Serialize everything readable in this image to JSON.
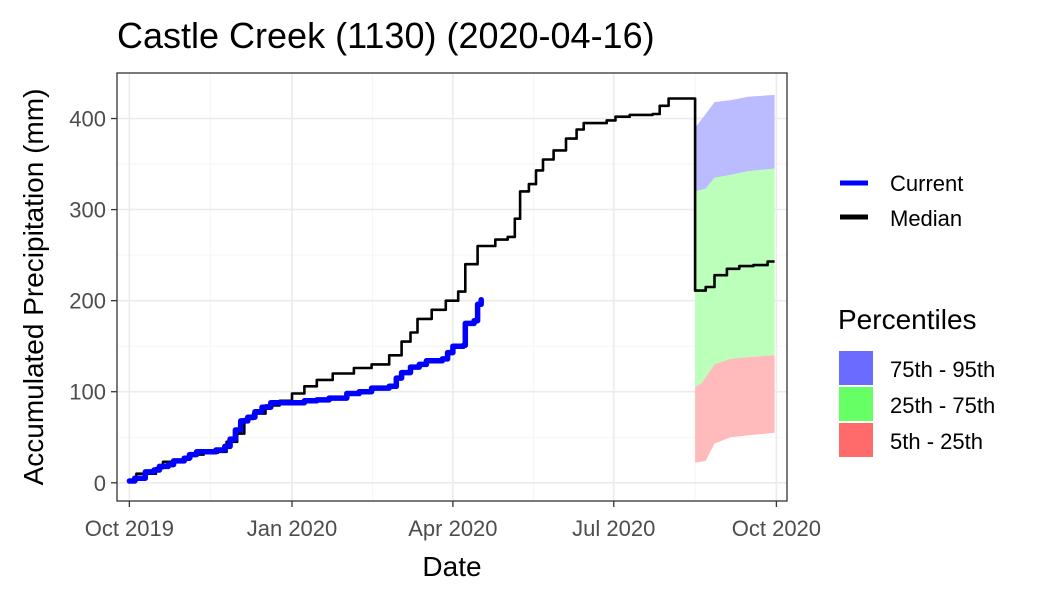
{
  "chart_data": {
    "type": "line",
    "title": "Castle Creek (1130) (2020-04-16)",
    "xlabel": "Date",
    "ylabel": "Accumulated Precipitation (mm)",
    "xlim": [
      "2019-09-24",
      "2020-10-07"
    ],
    "ylim": [
      -20,
      450
    ],
    "x_ticks": [
      "2019-10-01",
      "2020-01-01",
      "2020-04-01",
      "2020-07-01",
      "2020-10-01"
    ],
    "x_tick_labels": [
      "Oct 2019",
      "Jan 2020",
      "Apr 2020",
      "Jul 2020",
      "Oct 2020"
    ],
    "y_ticks": [
      0,
      100,
      200,
      300,
      400
    ],
    "y_tick_labels": [
      "0",
      "100",
      "200",
      "300",
      "400"
    ],
    "grid": true,
    "legend_placement": "right",
    "series": [
      {
        "name": "Current",
        "color": "#0000ff",
        "points": [
          [
            "2019-10-01",
            2
          ],
          [
            "2019-10-04",
            5
          ],
          [
            "2019-10-08",
            5
          ],
          [
            "2019-10-10",
            12
          ],
          [
            "2019-10-15",
            14
          ],
          [
            "2019-10-18",
            18
          ],
          [
            "2019-10-23",
            20
          ],
          [
            "2019-10-26",
            24
          ],
          [
            "2019-11-01",
            27
          ],
          [
            "2019-11-04",
            31
          ],
          [
            "2019-11-08",
            34
          ],
          [
            "2019-11-16",
            34
          ],
          [
            "2019-11-19",
            36
          ],
          [
            "2019-11-24",
            40
          ],
          [
            "2019-11-27",
            48
          ],
          [
            "2019-11-30",
            58
          ],
          [
            "2019-12-03",
            68
          ],
          [
            "2019-12-07",
            72
          ],
          [
            "2019-12-11",
            78
          ],
          [
            "2019-12-15",
            83
          ],
          [
            "2019-12-20",
            88
          ],
          [
            "2020-01-08",
            90
          ],
          [
            "2020-01-15",
            91
          ],
          [
            "2020-01-22",
            93
          ],
          [
            "2020-02-01",
            98
          ],
          [
            "2020-02-08",
            100
          ],
          [
            "2020-02-15",
            104
          ],
          [
            "2020-02-25",
            106
          ],
          [
            "2020-02-29",
            115
          ],
          [
            "2020-03-03",
            121
          ],
          [
            "2020-03-08",
            127
          ],
          [
            "2020-03-13",
            130
          ],
          [
            "2020-03-17",
            134
          ],
          [
            "2020-03-26",
            136
          ],
          [
            "2020-03-29",
            143
          ],
          [
            "2020-04-01",
            150
          ],
          [
            "2020-04-07",
            151
          ],
          [
            "2020-04-08",
            175
          ],
          [
            "2020-04-13",
            178
          ],
          [
            "2020-04-15",
            196
          ],
          [
            "2020-04-17",
            201
          ]
        ]
      },
      {
        "name": "Median",
        "color": "#000000",
        "points": [
          [
            "2019-10-01",
            2
          ],
          [
            "2019-10-05",
            10
          ],
          [
            "2019-10-12",
            10
          ],
          [
            "2019-10-16",
            16
          ],
          [
            "2019-10-20",
            23
          ],
          [
            "2019-10-27",
            24
          ],
          [
            "2019-11-01",
            27
          ],
          [
            "2019-11-05",
            31
          ],
          [
            "2019-11-12",
            33
          ],
          [
            "2019-11-20",
            34
          ],
          [
            "2019-11-25",
            45
          ],
          [
            "2019-12-01",
            54
          ],
          [
            "2019-12-05",
            70
          ],
          [
            "2019-12-10",
            76
          ],
          [
            "2019-12-17",
            85
          ],
          [
            "2019-12-25",
            90
          ],
          [
            "2020-01-01",
            98
          ],
          [
            "2020-01-08",
            106
          ],
          [
            "2020-01-15",
            113
          ],
          [
            "2020-01-24",
            120
          ],
          [
            "2020-02-05",
            126
          ],
          [
            "2020-02-15",
            130
          ],
          [
            "2020-02-25",
            140
          ],
          [
            "2020-03-03",
            155
          ],
          [
            "2020-03-08",
            165
          ],
          [
            "2020-03-12",
            180
          ],
          [
            "2020-03-20",
            190
          ],
          [
            "2020-03-28",
            200
          ],
          [
            "2020-04-04",
            210
          ],
          [
            "2020-04-08",
            240
          ],
          [
            "2020-04-15",
            260
          ],
          [
            "2020-04-25",
            267
          ],
          [
            "2020-05-02",
            270
          ],
          [
            "2020-05-06",
            290
          ],
          [
            "2020-05-09",
            320
          ],
          [
            "2020-05-14",
            328
          ],
          [
            "2020-05-18",
            343
          ],
          [
            "2020-05-22",
            355
          ],
          [
            "2020-05-28",
            365
          ],
          [
            "2020-06-04",
            378
          ],
          [
            "2020-06-10",
            388
          ],
          [
            "2020-06-14",
            395
          ],
          [
            "2020-06-27",
            398
          ],
          [
            "2020-07-02",
            402
          ],
          [
            "2020-07-10",
            404
          ],
          [
            "2020-07-23",
            405
          ],
          [
            "2020-07-27",
            414
          ],
          [
            "2020-08-01",
            422
          ],
          [
            "2020-08-15",
            422
          ],
          [
            "2020-08-16",
            211
          ],
          [
            "2020-08-22",
            215
          ],
          [
            "2020-08-27",
            228
          ],
          [
            "2020-09-03",
            235
          ],
          [
            "2020-09-10",
            238
          ],
          [
            "2020-09-18",
            239
          ],
          [
            "2020-09-26",
            243
          ],
          [
            "2020-09-30",
            243
          ]
        ]
      }
    ],
    "bands": [
      {
        "name": "75th - 95th",
        "legend_color": "#6b6bff",
        "fill_color": "#bbbbff",
        "lower": [
          [
            "2020-08-16",
            320
          ],
          [
            "2020-08-22",
            323
          ],
          [
            "2020-08-27",
            335
          ],
          [
            "2020-09-05",
            338
          ],
          [
            "2020-09-15",
            342
          ],
          [
            "2020-09-30",
            345
          ]
        ],
        "upper": [
          [
            "2020-08-16",
            390
          ],
          [
            "2020-08-22",
            405
          ],
          [
            "2020-08-27",
            418
          ],
          [
            "2020-09-05",
            420
          ],
          [
            "2020-09-15",
            424
          ],
          [
            "2020-09-30",
            426
          ]
        ]
      },
      {
        "name": "25th - 75th",
        "legend_color": "#66ff66",
        "fill_color": "#bbffbb",
        "lower": [
          [
            "2020-08-16",
            105
          ],
          [
            "2020-08-20",
            110
          ],
          [
            "2020-08-27",
            130
          ],
          [
            "2020-09-05",
            136
          ],
          [
            "2020-09-15",
            138
          ],
          [
            "2020-09-30",
            140
          ]
        ],
        "upper": [
          [
            "2020-08-16",
            320
          ],
          [
            "2020-08-22",
            323
          ],
          [
            "2020-08-27",
            335
          ],
          [
            "2020-09-05",
            338
          ],
          [
            "2020-09-15",
            342
          ],
          [
            "2020-09-30",
            345
          ]
        ]
      },
      {
        "name": "5th - 25th",
        "legend_color": "#ff6b6b",
        "fill_color": "#ffbbbb",
        "lower": [
          [
            "2020-08-16",
            22
          ],
          [
            "2020-08-22",
            24
          ],
          [
            "2020-08-27",
            43
          ],
          [
            "2020-09-05",
            50
          ],
          [
            "2020-09-15",
            52
          ],
          [
            "2020-09-30",
            55
          ]
        ],
        "upper": [
          [
            "2020-08-16",
            105
          ],
          [
            "2020-08-20",
            110
          ],
          [
            "2020-08-27",
            130
          ],
          [
            "2020-09-05",
            136
          ],
          [
            "2020-09-15",
            138
          ],
          [
            "2020-09-30",
            140
          ]
        ]
      }
    ]
  },
  "legend": {
    "lines": [
      {
        "label": "Current",
        "color": "#0000ff"
      },
      {
        "label": "Median",
        "color": "#000000"
      }
    ],
    "percentiles_title": "Percentiles",
    "fills": [
      {
        "label": "75th - 95th",
        "color": "#6b6bff"
      },
      {
        "label": "25th - 75th",
        "color": "#66ff66"
      },
      {
        "label": "5th - 25th",
        "color": "#ff6b6b"
      }
    ]
  }
}
